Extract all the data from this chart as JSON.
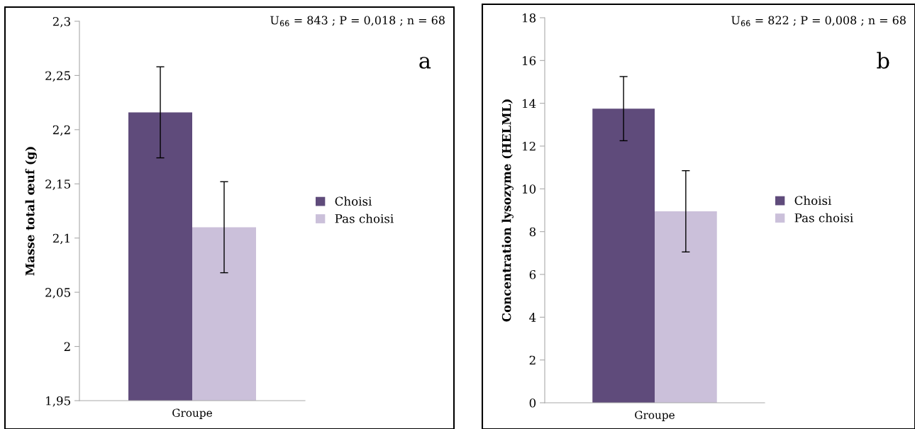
{
  "chart_data": [
    {
      "type": "bar",
      "ylabel": "Masse total œuf (g)",
      "categories": [
        "Groupe"
      ],
      "series": [
        {
          "name": "Choisi",
          "color": "#5f4b7b",
          "values": [
            2.216
          ],
          "errors": [
            0.042
          ]
        },
        {
          "name": "Pas choisi",
          "color": "#cbc0da",
          "values": [
            2.11
          ],
          "errors": [
            0.042
          ]
        }
      ],
      "ylim": [
        1.95,
        2.3
      ],
      "yticks": [
        {
          "value": 1.95,
          "label": "1,95"
        },
        {
          "value": 2,
          "label": "2"
        },
        {
          "value": 2.05,
          "label": "2,05"
        },
        {
          "value": 2.1,
          "label": "2,1"
        },
        {
          "value": 2.15,
          "label": "2,15"
        },
        {
          "value": 2.2,
          "label": "2,2"
        },
        {
          "value": 2.25,
          "label": "2,25"
        },
        {
          "value": 2.3,
          "label": "2,3"
        }
      ],
      "annotations": [
        "U$_{66}$ = 843 ; P = 0,018 ; n = 68",
        "a"
      ],
      "grid": false,
      "legend": "right"
    },
    {
      "type": "bar",
      "ylabel": "Concentration lysozyme (HELML)",
      "categories": [
        "Groupe"
      ],
      "series": [
        {
          "name": "Choisi",
          "color": "#5f4b7b",
          "values": [
            13.75
          ],
          "errors": [
            1.5
          ]
        },
        {
          "name": "Pas choisi",
          "color": "#cbc0da",
          "values": [
            8.95
          ],
          "errors": [
            1.9
          ]
        }
      ],
      "ylim": [
        0,
        18
      ],
      "yticks": [
        0,
        2,
        4,
        6,
        8,
        10,
        12,
        14,
        16,
        18
      ],
      "annotations": [
        "U$_{66}$ = 822 ; P = 0,008 ; n = 68",
        "b"
      ],
      "grid": false,
      "legend": "right"
    }
  ]
}
